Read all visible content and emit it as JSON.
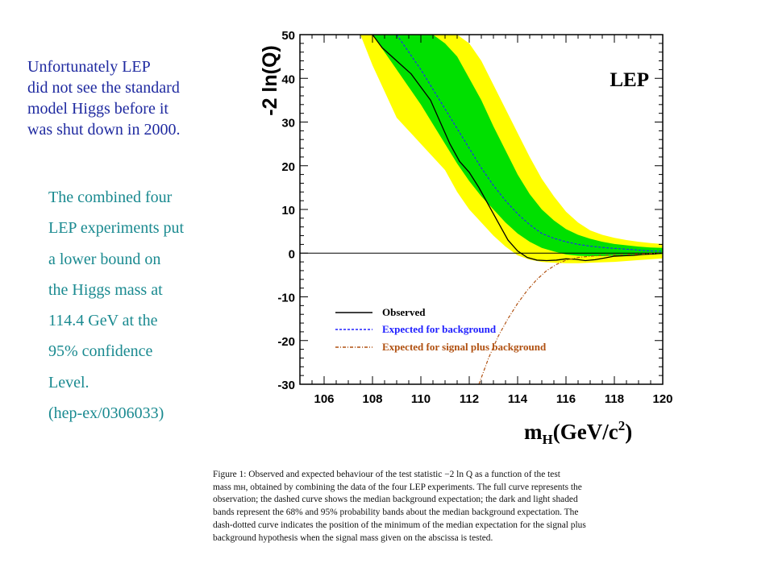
{
  "intro_lines": [
    "Unfortunately LEP",
    "did not see the standard",
    "model Higgs before it",
    "was shut down in 2000."
  ],
  "detail_lines": [
    "The combined four",
    "LEP experiments put",
    "a lower bound on",
    "the Higgs mass at",
    "114.4 GeV at the",
    "95% confidence",
    "Level.",
    "(hep-ex/0306033)"
  ],
  "caption_lines": [
    "Figure 1:  Observed and expected behaviour of the test statistic −2 ln Q as a function of the test",
    "mass mʜ, obtained by combining the data of the four LEP experiments. The full curve represents the",
    "observation; the dashed curve shows the median background expectation; the dark and light shaded",
    "bands represent the 68% and 95% probability bands about the median background expectation.  The",
    "dash-dotted curve indicates the position of the minimum of the median expectation for the signal plus",
    "background hypothesis when the signal mass given on the abscissa is tested."
  ],
  "chart_data": {
    "type": "line",
    "title": "LEP",
    "xlabel_main": "m",
    "xlabel_sub": "H",
    "xlabel_rest": "(GeV/c",
    "xlabel_sup": "2",
    "xlabel_end": ")",
    "ylabel": "-2 ln(Q)",
    "xlim": [
      105,
      120
    ],
    "ylim": [
      -30,
      50
    ],
    "xticks": [
      106,
      108,
      110,
      112,
      114,
      116,
      118,
      120
    ],
    "yticks": [
      -30,
      -20,
      -10,
      0,
      10,
      20,
      30,
      40,
      50
    ],
    "grid": false,
    "legend_position": "bottom-left",
    "colors": {
      "band95": "#ffff00",
      "band68": "#00e000",
      "observed": "#000000",
      "expected_bkg": "#2020ff",
      "expected_sig": "#b05010"
    },
    "series": [
      {
        "name": "Observed",
        "style": "solid",
        "x": [
          108.0,
          108.4,
          108.8,
          109.2,
          109.6,
          110.0,
          110.4,
          110.8,
          111.2,
          111.6,
          112.0,
          112.4,
          112.8,
          113.2,
          113.6,
          114.0,
          114.4,
          114.8,
          115.2,
          115.6,
          116.0,
          116.4,
          116.8,
          117.2,
          117.6,
          118.0,
          118.4,
          118.8,
          119.2,
          119.6,
          120.0
        ],
        "y": [
          50,
          47,
          45,
          43,
          41,
          38,
          35,
          30,
          25,
          21,
          18.5,
          15,
          11,
          7,
          3,
          0.5,
          -1,
          -1.6,
          -1.7,
          -1.6,
          -1.3,
          -1.4,
          -1.7,
          -1.5,
          -1.1,
          -0.7,
          -0.6,
          -0.5,
          -0.3,
          -0.2,
          0
        ]
      },
      {
        "name": "Expected for background",
        "style": "dashed",
        "x": [
          109.0,
          109.5,
          110.0,
          110.5,
          111.0,
          111.5,
          112.0,
          112.5,
          113.0,
          113.5,
          114.0,
          114.5,
          115.0,
          115.5,
          116.0,
          116.5,
          117.0,
          117.5,
          118.0,
          118.5,
          119.0,
          119.5,
          120.0
        ],
        "y": [
          50,
          46,
          42,
          37.5,
          33,
          28.5,
          24,
          19.5,
          15.5,
          12,
          9,
          6.5,
          4.5,
          3.4,
          2.6,
          2.0,
          1.6,
          1.3,
          1.1,
          0.9,
          0.7,
          0.5,
          0.4
        ]
      },
      {
        "name": "Expected for signal plus background",
        "style": "dash-dot",
        "x": [
          112.4,
          112.8,
          113.2,
          113.6,
          114.0,
          114.4,
          114.8,
          115.2,
          115.6,
          116.0,
          116.5,
          117.0,
          117.5,
          118.0,
          118.5,
          119.0,
          119.5,
          120.0
        ],
        "y": [
          -30,
          -24,
          -19,
          -15,
          -11.5,
          -8.5,
          -6,
          -4,
          -2.6,
          -1.6,
          -1.0,
          -0.7,
          -0.5,
          -0.4,
          -0.3,
          -0.2,
          -0.1,
          0
        ]
      }
    ],
    "bands": [
      {
        "name": "95% band",
        "x": [
          105.0,
          106.0,
          107.0,
          107.5,
          108.0,
          108.5,
          109.0,
          109.5,
          110.0,
          110.5,
          111.0,
          111.5,
          112.0,
          112.5,
          113.0,
          113.5,
          114.0,
          114.5,
          115.0,
          115.5,
          116.0,
          116.5,
          117.0,
          117.5,
          118.0,
          118.5,
          119.0,
          119.5,
          120.0
        ],
        "lower": [
          50,
          50,
          50,
          50,
          43,
          37,
          31,
          28,
          25,
          22,
          19,
          14,
          10,
          7,
          4,
          1.5,
          -0.5,
          -1.5,
          -2.0,
          -2.2,
          -2.3,
          -2.3,
          -2.2,
          -2.1,
          -2.0,
          -1.8,
          -1.6,
          -1.4,
          -1.2
        ],
        "upper": [
          50,
          50,
          50,
          50,
          50,
          50,
          50,
          50,
          50,
          50,
          50,
          50,
          48,
          44,
          38.5,
          33,
          27.5,
          22,
          17,
          13,
          9.5,
          7,
          5.2,
          4.2,
          3.5,
          3.0,
          2.6,
          2.3,
          2.1
        ]
      },
      {
        "name": "68% band",
        "x": [
          108.0,
          108.5,
          109.0,
          109.5,
          110.0,
          110.5,
          111.0,
          111.5,
          112.0,
          112.5,
          113.0,
          113.5,
          114.0,
          114.5,
          115.0,
          115.5,
          116.0,
          116.5,
          117.0,
          117.5,
          118.0,
          118.5,
          119.0,
          119.5,
          120.0
        ],
        "lower": [
          50,
          46,
          42,
          38,
          34,
          29.5,
          25,
          20.5,
          16.5,
          13,
          10,
          7,
          4.5,
          2.6,
          1.2,
          0.4,
          -0.3,
          -0.6,
          -0.7,
          -0.7,
          -0.6,
          -0.5,
          -0.4,
          -0.3,
          -0.2
        ],
        "upper": [
          50,
          50,
          50,
          50,
          50,
          50,
          48,
          45,
          40,
          35,
          29,
          23.5,
          18,
          13.5,
          10,
          7.5,
          5.5,
          4.2,
          3.3,
          2.6,
          2.1,
          1.8,
          1.5,
          1.3,
          1.2
        ]
      }
    ]
  }
}
